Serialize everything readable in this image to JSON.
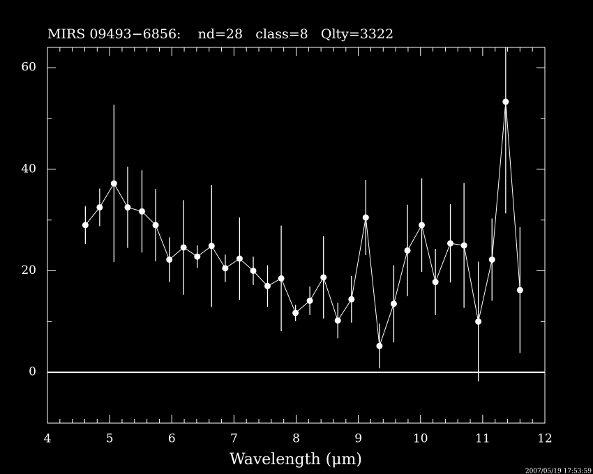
{
  "chart_data": {
    "type": "errorbar",
    "title": "MIRS 09493−6856:    nd=28   class=8   Qlty=3322",
    "x_label": "Wavelength (μm)",
    "timestamp": "2007/05/19 17:53:59",
    "color": "#ffffff",
    "background": "#000000",
    "xlim": [
      4,
      12
    ],
    "ylim": [
      -10,
      64
    ],
    "xticks": [
      4,
      5,
      6,
      7,
      8,
      9,
      10,
      11,
      12
    ],
    "xticks_minor": [
      4.2,
      4.4,
      4.6,
      4.8,
      5.2,
      5.4,
      5.6,
      5.8,
      6.2,
      6.4,
      6.6,
      6.8,
      7.2,
      7.4,
      7.6,
      7.8,
      8.2,
      8.4,
      8.6,
      8.8,
      9.2,
      9.4,
      9.6,
      9.8,
      10.2,
      10.4,
      10.6,
      10.8,
      11.2,
      11.4,
      11.6,
      11.8
    ],
    "yticks": [
      0,
      20,
      40,
      60
    ],
    "yticks_minor": [
      -10,
      10,
      30,
      50
    ],
    "hline": 0,
    "x": [
      4.61,
      4.84,
      5.07,
      5.29,
      5.52,
      5.74,
      5.96,
      6.19,
      6.41,
      6.64,
      6.86,
      7.09,
      7.31,
      7.54,
      7.76,
      7.99,
      8.22,
      8.44,
      8.67,
      8.89,
      9.12,
      9.34,
      9.57,
      9.79,
      10.02,
      10.24,
      10.48,
      10.7,
      10.93,
      11.15,
      11.37,
      11.6
    ],
    "values": [
      29,
      32.5,
      37.2,
      32.5,
      31.7,
      29,
      22.2,
      24.6,
      22.8,
      24.9,
      20.5,
      22.4,
      20,
      17,
      18.5,
      11.7,
      14.1,
      18.7,
      10.2,
      14.4,
      30.5,
      5.2,
      13.5,
      24,
      29,
      17.8,
      25.4,
      25,
      10,
      22.2,
      53.3,
      16.2
    ],
    "errors": [
      3.7,
      3.7,
      15.5,
      8,
      8.1,
      7.1,
      4.4,
      9.3,
      2.2,
      12,
      2.7,
      8.1,
      2.8,
      4.1,
      10.4,
      1.6,
      2.8,
      8.1,
      3.5,
      4.6,
      7.4,
      4.4,
      7.6,
      9,
      9.2,
      6.5,
      7.7,
      12.3,
      11.8,
      8.1,
      22,
      12.4
    ]
  }
}
